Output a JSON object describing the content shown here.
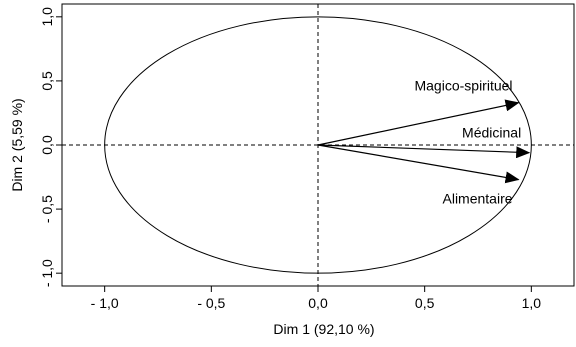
{
  "chart_data": {
    "type": "scatter",
    "subtype": "correlation-circle",
    "title": "",
    "xlabel": "Dim 1 (92,10 %)",
    "ylabel": "Dim 2 (5,59 %)",
    "xlim": [
      -1.2,
      1.2
    ],
    "ylim": [
      -1.1,
      1.1
    ],
    "x_ticks": [
      {
        "value": -1.0,
        "label": "- 1,0"
      },
      {
        "value": -0.5,
        "label": "- 0,5"
      },
      {
        "value": 0.0,
        "label": "0,0"
      },
      {
        "value": 0.5,
        "label": "0,5"
      },
      {
        "value": 1.0,
        "label": "1,0"
      }
    ],
    "y_ticks": [
      {
        "value": -1.0,
        "label": "- 1,0"
      },
      {
        "value": -0.5,
        "label": "- 0,5"
      },
      {
        "value": 0.0,
        "label": "0,0"
      },
      {
        "value": 0.5,
        "label": "0,5"
      },
      {
        "value": 1.0,
        "label": "1,0"
      }
    ],
    "grid": false,
    "reference_lines": [
      {
        "axis": "x",
        "value": 0,
        "style": "dashed"
      },
      {
        "axis": "y",
        "value": 0,
        "style": "dashed"
      }
    ],
    "circle": {
      "radius": 1.0
    },
    "vectors": [
      {
        "name": "Magico-spirituel",
        "x": 0.94,
        "y": 0.33
      },
      {
        "name": "Médicinal",
        "x": 0.99,
        "y": -0.06
      },
      {
        "name": "Alimentaire",
        "x": 0.94,
        "y": -0.27
      }
    ],
    "colors": {
      "line": "#000000",
      "background": "#ffffff"
    }
  }
}
